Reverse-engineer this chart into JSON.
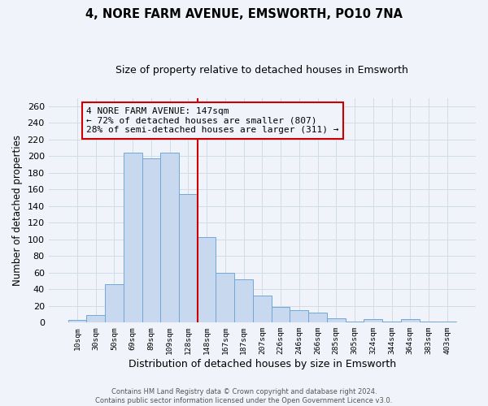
{
  "title": "4, NORE FARM AVENUE, EMSWORTH, PO10 7NA",
  "subtitle": "Size of property relative to detached houses in Emsworth",
  "xlabel": "Distribution of detached houses by size in Emsworth",
  "ylabel": "Number of detached properties",
  "bar_labels": [
    "10sqm",
    "30sqm",
    "50sqm",
    "69sqm",
    "89sqm",
    "109sqm",
    "128sqm",
    "148sqm",
    "167sqm",
    "187sqm",
    "207sqm",
    "226sqm",
    "246sqm",
    "266sqm",
    "285sqm",
    "305sqm",
    "324sqm",
    "344sqm",
    "364sqm",
    "383sqm",
    "403sqm"
  ],
  "bar_values": [
    3,
    9,
    46,
    204,
    197,
    204,
    154,
    103,
    60,
    52,
    32,
    19,
    15,
    12,
    5,
    1,
    4,
    1,
    4,
    1,
    1
  ],
  "bar_color": "#c8d8ee",
  "bar_edge_color": "#6fa8d8",
  "vline_x_index": 7,
  "vline_color": "#cc0000",
  "annotation_title": "4 NORE FARM AVENUE: 147sqm",
  "annotation_line1": "← 72% of detached houses are smaller (807)",
  "annotation_line2": "28% of semi-detached houses are larger (311) →",
  "annotation_box_edge": "#cc0000",
  "ylim": [
    0,
    270
  ],
  "yticks": [
    0,
    20,
    40,
    60,
    80,
    100,
    120,
    140,
    160,
    180,
    200,
    220,
    240,
    260
  ],
  "footer_line1": "Contains HM Land Registry data © Crown copyright and database right 2024.",
  "footer_line2": "Contains public sector information licensed under the Open Government Licence v3.0.",
  "background_color": "#f0f4fa",
  "grid_color": "#d0dde8"
}
